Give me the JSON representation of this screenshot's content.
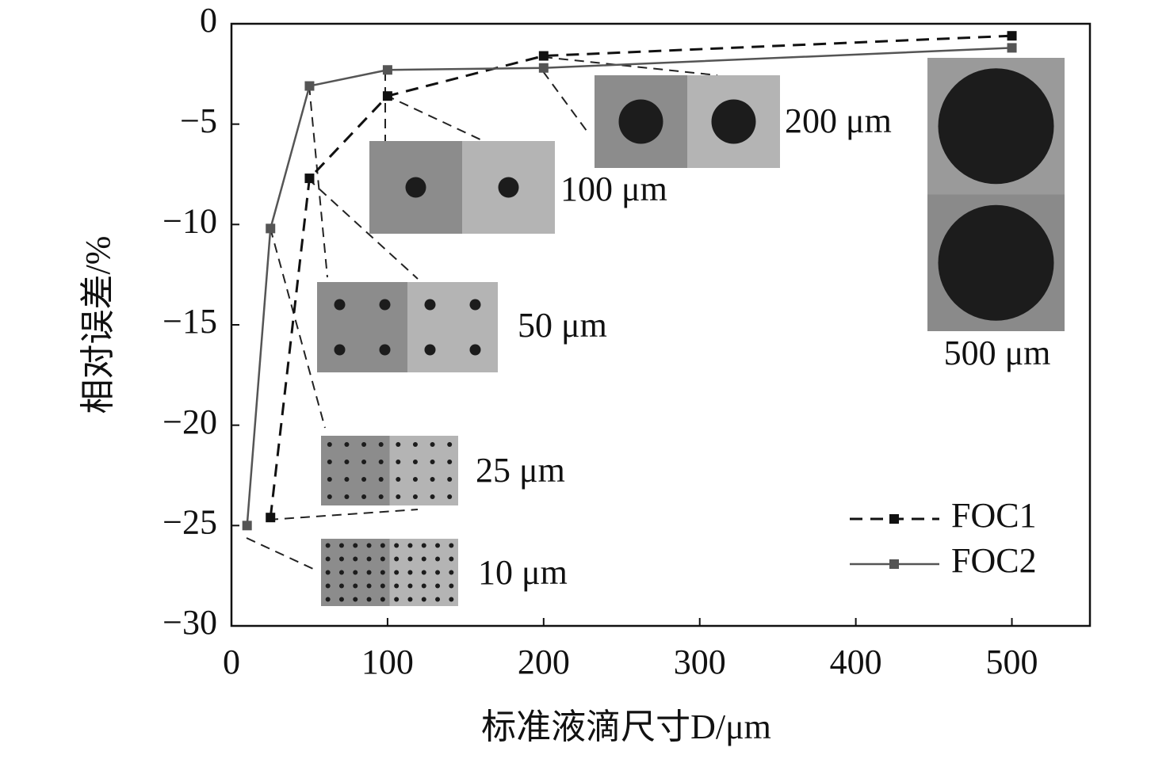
{
  "chart_data": {
    "type": "line",
    "xlabel": "标准液滴尺寸D/μm",
    "ylabel": "相对误差/%",
    "xlim": [
      0,
      550
    ],
    "xticks": [
      0,
      100,
      200,
      300,
      400,
      500
    ],
    "ylim": [
      -30,
      0
    ],
    "yticks": [
      {
        "value": -30,
        "label": "−30"
      },
      {
        "value": -25,
        "label": "−25"
      },
      {
        "value": -20,
        "label": "−20"
      },
      {
        "value": -15,
        "label": "−15"
      },
      {
        "value": -10,
        "label": "−10"
      },
      {
        "value": -5,
        "label": "−5"
      },
      0
    ],
    "legend": "lower right",
    "series": [
      {
        "name": "FOC1",
        "color": "#111111",
        "dash": true,
        "x": [
          25,
          50,
          100,
          200,
          500
        ],
        "values": [
          -24.6,
          -7.7,
          -3.6,
          -1.6,
          -0.6
        ]
      },
      {
        "name": "FOC2",
        "color": "#555555",
        "dash": false,
        "x": [
          10,
          25,
          50,
          100,
          200,
          500
        ],
        "values": [
          -25,
          -10.2,
          -3.1,
          -2.3,
          -2.2,
          -1.2
        ]
      }
    ],
    "annotations": [
      "10 μm",
      "25 μm",
      "50 μm",
      "100 μm",
      "200 μm",
      "500 μm"
    ]
  }
}
